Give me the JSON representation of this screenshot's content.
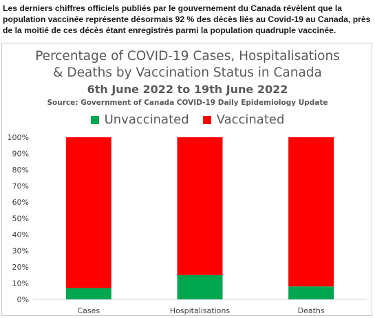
{
  "caption": "Les derniers chiffres officiels publiés par le gouvernement du Canada révèlent que la population vaccinée représente désormais 92 % des décès liés au Covid-19 au Canada, près de la moitié de ces décès étant enregistrés parmi la population quadruple vaccinée.",
  "chart_data": {
    "type": "bar",
    "stacked": true,
    "title_line1": "Percentage of COVID-19 Cases, Hospitalisations",
    "title_line2": "& Deaths by Vaccination Status in Canada",
    "subtitle": "6th June 2022 to 19th June 2022",
    "source": "Source: Government of Canada COVID-19 Daily Epidemiology Update",
    "legend_position": "top",
    "categories": [
      "Cases",
      "Hospitalisations",
      "Deaths"
    ],
    "series": [
      {
        "name": "Unvaccinated",
        "color": "#00a650",
        "values": [
          7,
          15,
          8
        ]
      },
      {
        "name": "Vaccinated",
        "color": "#ff0000",
        "values": [
          93,
          85,
          92
        ]
      }
    ],
    "ylim": [
      0,
      100
    ],
    "yticks": [
      "0%",
      "10%",
      "20%",
      "30%",
      "40%",
      "50%",
      "60%",
      "70%",
      "80%",
      "90%",
      "100%"
    ],
    "grid": false
  }
}
